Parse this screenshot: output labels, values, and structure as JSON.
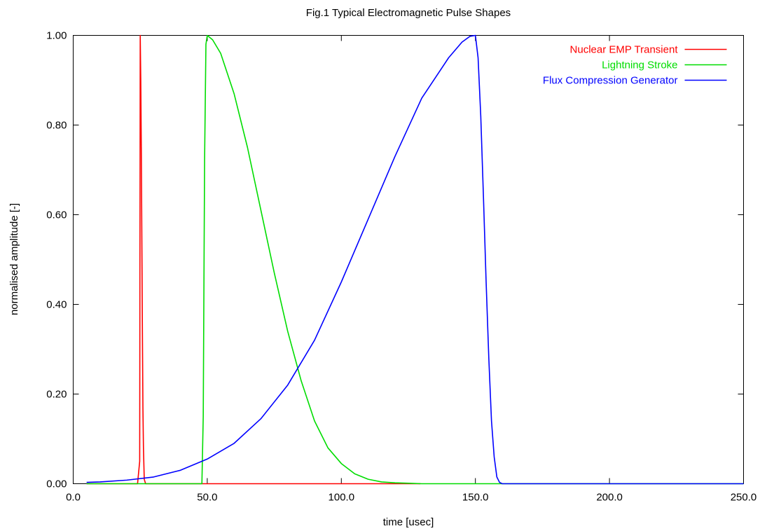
{
  "chart_data": {
    "type": "line",
    "title": "Fig.1 Typical Electromagnetic Pulse Shapes",
    "xlabel": "time [usec]",
    "ylabel": "normalised amplitude [-]",
    "xlim": [
      0,
      250
    ],
    "ylim": [
      0,
      1
    ],
    "x_ticks": [
      {
        "value": 0,
        "label": "0.0"
      },
      {
        "value": 50,
        "label": "50.0"
      },
      {
        "value": 100,
        "label": "100.0"
      },
      {
        "value": 150,
        "label": "150.0"
      },
      {
        "value": 200,
        "label": "200.0"
      },
      {
        "value": 250,
        "label": "250.0"
      }
    ],
    "y_ticks": [
      {
        "value": 0,
        "label": "0.00"
      },
      {
        "value": 0.2,
        "label": "0.20"
      },
      {
        "value": 0.4,
        "label": "0.40"
      },
      {
        "value": 0.6,
        "label": "0.60"
      },
      {
        "value": 0.8,
        "label": "0.80"
      },
      {
        "value": 1.0,
        "label": "1.00"
      }
    ],
    "grid": false,
    "legend_position": "top-right",
    "series": [
      {
        "name": "Nuclear EMP Transient",
        "color": "#ff0000",
        "x": [
          5,
          24,
          24.8,
          25,
          25.2,
          25.4,
          25.6,
          25.8,
          26,
          26.2,
          26.5,
          27,
          30,
          50,
          80,
          100,
          129.5
        ],
        "y": [
          0,
          0,
          0.05,
          1.0,
          0.9,
          0.75,
          0.55,
          0.35,
          0.17,
          0.08,
          0.01,
          0,
          0,
          0,
          0,
          0,
          0
        ]
      },
      {
        "name": "Lightning Stroke",
        "color": "#00dd00",
        "x": [
          5,
          48,
          48.5,
          49,
          49.5,
          50,
          52,
          55,
          60,
          65,
          70,
          75,
          80,
          85,
          90,
          95,
          100,
          105,
          110,
          115,
          120,
          125,
          130,
          140,
          150,
          160,
          250
        ],
        "y": [
          0,
          0,
          0.15,
          0.72,
          0.98,
          1.0,
          0.99,
          0.96,
          0.87,
          0.75,
          0.61,
          0.47,
          0.34,
          0.23,
          0.14,
          0.08,
          0.045,
          0.022,
          0.01,
          0.004,
          0.002,
          0.001,
          0,
          0,
          0,
          0,
          0
        ]
      },
      {
        "name": "Flux Compression Generator",
        "color": "#0000ff",
        "x": [
          5,
          10,
          20,
          30,
          40,
          50,
          60,
          70,
          80,
          90,
          100,
          110,
          120,
          130,
          140,
          145,
          148,
          150,
          151,
          152,
          153,
          154,
          155,
          156,
          157,
          158,
          159,
          160,
          200,
          250
        ],
        "y": [
          0.003,
          0.004,
          0.008,
          0.015,
          0.03,
          0.055,
          0.09,
          0.145,
          0.22,
          0.32,
          0.45,
          0.59,
          0.73,
          0.86,
          0.95,
          0.985,
          0.998,
          1.0,
          0.95,
          0.82,
          0.64,
          0.45,
          0.28,
          0.14,
          0.06,
          0.015,
          0.003,
          0,
          0,
          0
        ]
      }
    ]
  }
}
